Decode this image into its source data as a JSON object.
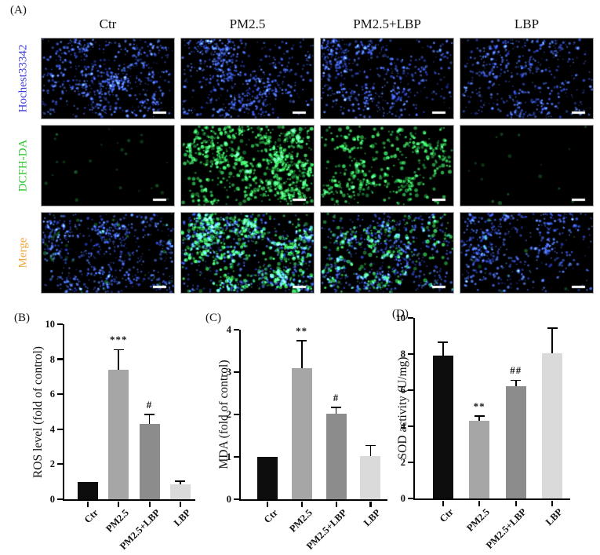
{
  "figure": {
    "panel_a": {
      "label": "(A)",
      "columns": [
        "Ctr",
        "PM2.5",
        "PM2.5+LBP",
        "LBP"
      ],
      "rows": [
        {
          "label": "Hochest33342",
          "color": "#3c3cd9",
          "key": "hoechst"
        },
        {
          "label": "DCFH-DA",
          "color": "#2fc42f",
          "key": "dcfh-da"
        },
        {
          "label": "Merge",
          "color": "#f0a63a",
          "key": "merge"
        }
      ],
      "column_keys": [
        "ctr",
        "pm25",
        "pm25-lbp",
        "lbp"
      ],
      "cells": [
        [
          {
            "blue": 0.8,
            "green": 0.0
          },
          {
            "blue": 0.85,
            "green": 0.0
          },
          {
            "blue": 0.72,
            "green": 0.0
          },
          {
            "blue": 0.65,
            "green": 0.0
          }
        ],
        [
          {
            "blue": 0.0,
            "green": 0.03
          },
          {
            "blue": 0.0,
            "green": 0.95
          },
          {
            "blue": 0.0,
            "green": 0.5
          },
          {
            "blue": 0.0,
            "green": 0.02
          }
        ],
        [
          {
            "blue": 0.8,
            "green": 0.06
          },
          {
            "blue": 0.8,
            "green": 0.8
          },
          {
            "blue": 0.7,
            "green": 0.3
          },
          {
            "blue": 0.65,
            "green": 0.02
          }
        ]
      ],
      "scale_bar": {
        "present": true,
        "color": "#ffffff"
      },
      "background_color": "#000000"
    }
  },
  "chart_data": [
    {
      "type": "bar",
      "panel_label": "(B)",
      "categories": [
        "Ctr",
        "PM2.5",
        "PM2.5+LBP",
        "LBP"
      ],
      "values": [
        1.0,
        7.4,
        4.3,
        0.85
      ],
      "errors": [
        0,
        1.15,
        0.55,
        0.18
      ],
      "annotations": [
        "",
        "***",
        "#",
        ""
      ],
      "ylabel": "ROS level (fold of control)",
      "xlabel": "",
      "ylim": [
        0,
        10
      ],
      "yticks": [
        0,
        2,
        4,
        6,
        8,
        10
      ],
      "bar_colors": [
        "#0d0d0d",
        "#a6a6a6",
        "#8c8c8c",
        "#dadada"
      ],
      "grid": false,
      "legend": "none"
    },
    {
      "type": "bar",
      "panel_label": "(C)",
      "categories": [
        "Ctr",
        "PM2.5",
        "PM2.5+LBP",
        "LBP"
      ],
      "values": [
        1.0,
        3.1,
        2.02,
        1.02
      ],
      "errors": [
        0,
        0.65,
        0.15,
        0.25
      ],
      "annotations": [
        "",
        "**",
        "#",
        ""
      ],
      "ylabel": "MDA (fold of control)",
      "xlabel": "",
      "ylim": [
        0,
        4
      ],
      "yticks": [
        0,
        1,
        2,
        3,
        4
      ],
      "bar_colors": [
        "#0d0d0d",
        "#a6a6a6",
        "#8c8c8c",
        "#dadada"
      ],
      "grid": false,
      "legend": "none"
    },
    {
      "type": "bar",
      "panel_label": "(D)",
      "categories": [
        "Ctr",
        "PM2.5",
        "PM2.5+LBP",
        "LBP"
      ],
      "values": [
        7.9,
        4.3,
        6.2,
        8.05
      ],
      "errors": [
        0.75,
        0.27,
        0.35,
        1.4
      ],
      "annotations": [
        "",
        "**",
        "##",
        ""
      ],
      "ylabel": "SOD activity (U/mg)",
      "xlabel": "",
      "ylim": [
        0,
        10
      ],
      "yticks": [
        0,
        2,
        4,
        6,
        8,
        10
      ],
      "bar_colors": [
        "#0d0d0d",
        "#a6a6a6",
        "#8c8c8c",
        "#dadada"
      ],
      "grid": false,
      "legend": "none"
    }
  ]
}
